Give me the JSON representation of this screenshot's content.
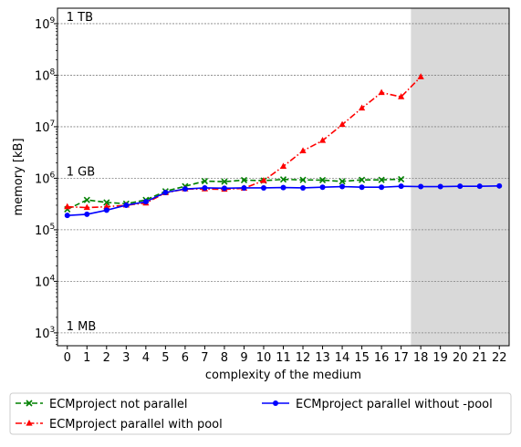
{
  "chart_data": {
    "type": "line",
    "title": "",
    "xlabel": "complexity of the medium",
    "ylabel": "memory [kB]",
    "xlim": [
      -0.5,
      22.5
    ],
    "ylim_log10": [
      2.75,
      9.3
    ],
    "yscale": "log",
    "xticks": [
      "0",
      "1",
      "2",
      "3",
      "4",
      "5",
      "6",
      "7",
      "8",
      "9",
      "10",
      "11",
      "12",
      "13",
      "14",
      "15",
      "16",
      "17",
      "18",
      "19",
      "20",
      "21",
      "22"
    ],
    "yticks": [
      {
        "value": 1000,
        "label_base": "10",
        "label_exp": "3"
      },
      {
        "value": 10000,
        "label_base": "10",
        "label_exp": "4"
      },
      {
        "value": 100000,
        "label_base": "10",
        "label_exp": "5"
      },
      {
        "value": 1000000,
        "label_base": "10",
        "label_exp": "6"
      },
      {
        "value": 10000000,
        "label_base": "10",
        "label_exp": "7"
      },
      {
        "value": 100000000,
        "label_base": "10",
        "label_exp": "8"
      },
      {
        "value": 1000000000,
        "label_base": "10",
        "label_exp": "9"
      }
    ],
    "grid": "horizontal dashed at major y ticks",
    "shaded_region": {
      "x_from": 17.5,
      "x_to": 22.5,
      "color": "#d9d9d9"
    },
    "annotations": [
      {
        "text": "1 TB",
        "x": 0,
        "y": 1000000000
      },
      {
        "text": "1 GB",
        "x": 0,
        "y": 1000000
      },
      {
        "text": "1 MB",
        "x": 0,
        "y": 1000
      }
    ],
    "series": [
      {
        "name": "ECMproject not parallel",
        "color": "#008000",
        "marker": "x",
        "linestyle": "dashed",
        "x": [
          0,
          1,
          2,
          3,
          4,
          5,
          6,
          7,
          8,
          9,
          10,
          11,
          12,
          13,
          14,
          15,
          16,
          17
        ],
        "values": [
          250000,
          380000,
          340000,
          320000,
          380000,
          560000,
          700000,
          880000,
          860000,
          920000,
          900000,
          950000,
          930000,
          920000,
          870000,
          930000,
          930000,
          960000
        ]
      },
      {
        "name": "ECMproject parallel with pool",
        "color": "#ff0000",
        "marker": "triangle",
        "linestyle": "dashdot",
        "x": [
          0,
          1,
          2,
          3,
          4,
          5,
          6,
          7,
          8,
          9,
          10,
          11,
          12,
          13,
          14,
          15,
          16,
          17,
          18
        ],
        "values": [
          280000,
          270000,
          280000,
          300000,
          330000,
          520000,
          620000,
          620000,
          610000,
          640000,
          900000,
          1700000,
          3400000,
          5400000,
          11000000,
          23000000,
          46000000,
          38000000,
          93000000
        ]
      },
      {
        "name": "ECMproject parallel without -pool",
        "color": "#0000ff",
        "marker": "circle",
        "linestyle": "solid",
        "x": [
          0,
          1,
          2,
          3,
          4,
          5,
          6,
          7,
          8,
          9,
          10,
          11,
          12,
          13,
          14,
          15,
          16,
          17,
          18,
          19,
          20,
          21,
          22
        ],
        "values": [
          190000,
          200000,
          240000,
          300000,
          350000,
          530000,
          620000,
          650000,
          640000,
          650000,
          650000,
          660000,
          650000,
          670000,
          690000,
          670000,
          670000,
          700000,
          690000,
          690000,
          700000,
          700000,
          710000
        ]
      }
    ],
    "legend_placement": "bottom, outside plot, two columns"
  }
}
